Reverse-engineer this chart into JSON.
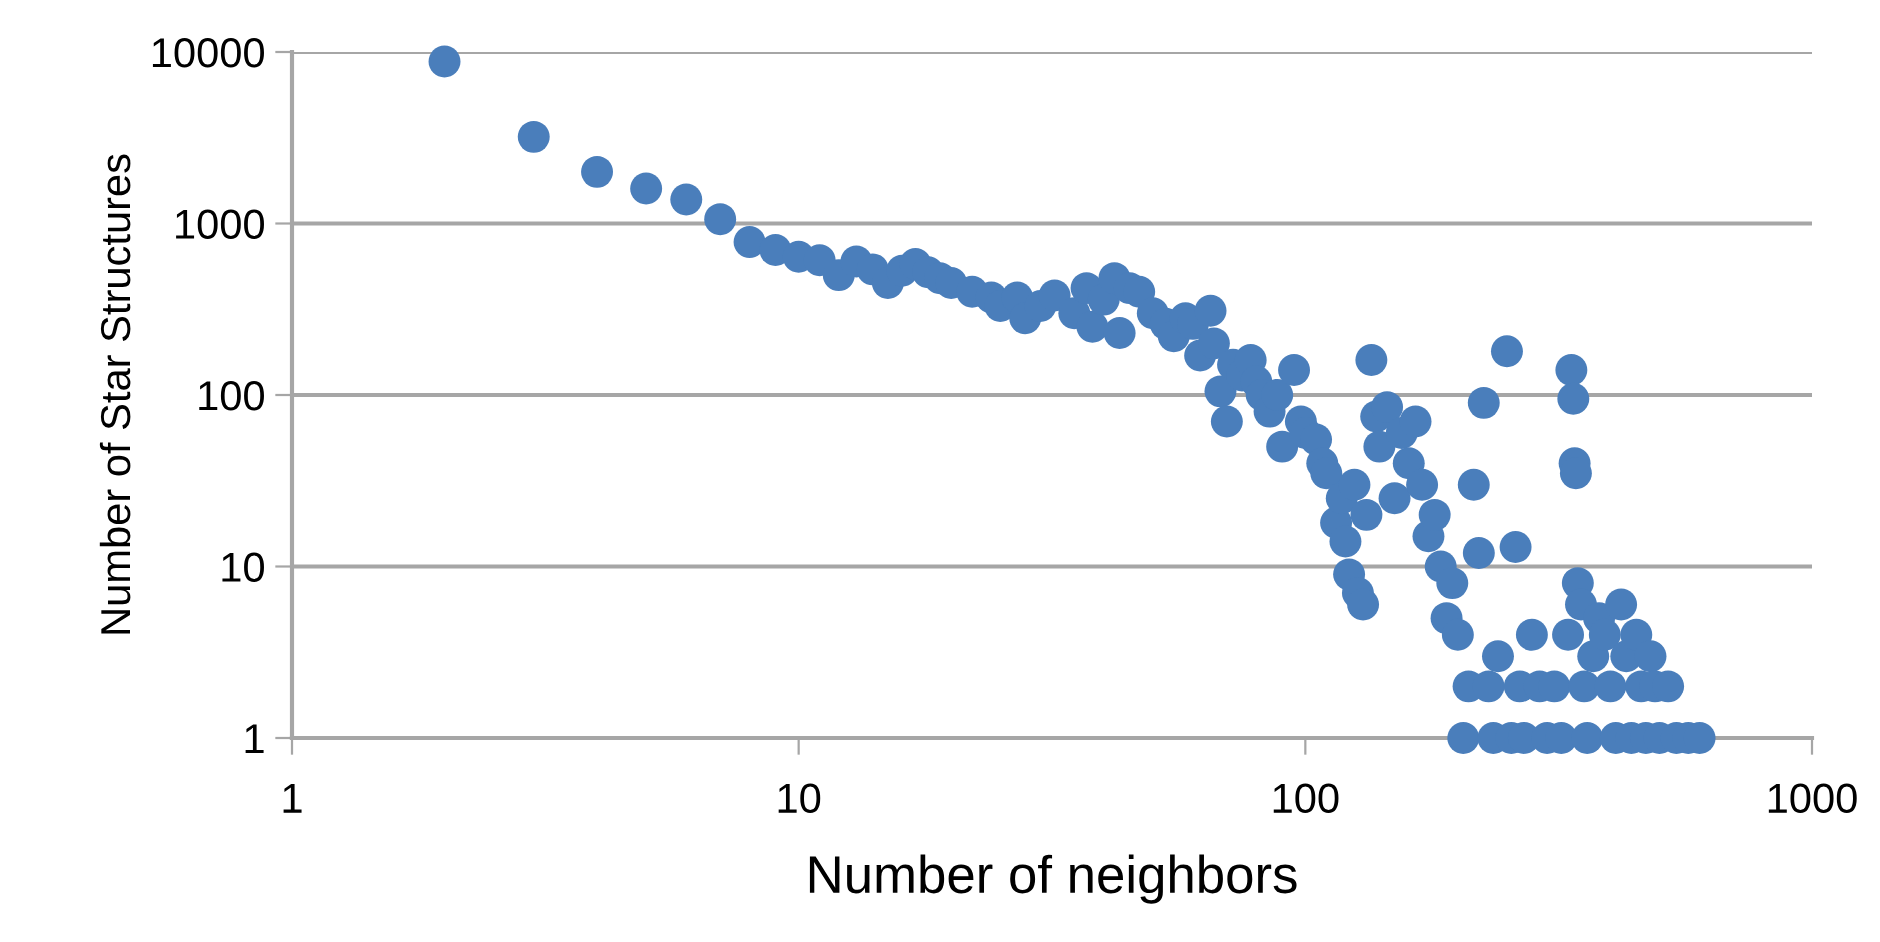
{
  "chart_data": {
    "type": "scatter",
    "xlabel": "Number of neighbors",
    "ylabel": "Number of Star Structures",
    "log": "xy",
    "xlim": [
      1,
      1000
    ],
    "ylim": [
      1,
      10000
    ],
    "xticks": [
      1,
      10,
      100,
      1000
    ],
    "yticks": [
      1,
      10,
      100,
      1000,
      10000
    ],
    "grid": "y",
    "marker": "circle",
    "series": [
      {
        "color": "#4a7ebb",
        "x": [
          2,
          3,
          4,
          5,
          6,
          7,
          8,
          9,
          10,
          11,
          12,
          13,
          14,
          15,
          16,
          17,
          18,
          19,
          20,
          22,
          24,
          25,
          27,
          28,
          30,
          32,
          35,
          37,
          38,
          40,
          42,
          43,
          45,
          47,
          50,
          53,
          55,
          58,
          60,
          62,
          65,
          66,
          68,
          70,
          72,
          75,
          78,
          80,
          82,
          85,
          88,
          90,
          95,
          98,
          100,
          105,
          108,
          110,
          115,
          118,
          120,
          122,
          125,
          127,
          130,
          132,
          135,
          138,
          140,
          145,
          150,
          155,
          160,
          165,
          170,
          175,
          180,
          185,
          190,
          195,
          200,
          205,
          210,
          215,
          220,
          225,
          230,
          235,
          240,
          250,
          255,
          260,
          265,
          270,
          280,
          290,
          300,
          310,
          320,
          330,
          335,
          338,
          340,
          342,
          345,
          350,
          355,
          360,
          370,
          380,
          390,
          400,
          410,
          420,
          430,
          440,
          450,
          460,
          470,
          480,
          490,
          500,
          520,
          540,
          570,
          600
        ],
        "values": [
          8800,
          3200,
          2000,
          1600,
          1380,
          1060,
          780,
          700,
          640,
          610,
          500,
          600,
          540,
          450,
          530,
          580,
          520,
          480,
          450,
          400,
          370,
          330,
          370,
          280,
          330,
          380,
          300,
          420,
          250,
          360,
          480,
          230,
          420,
          400,
          300,
          260,
          220,
          280,
          260,
          170,
          310,
          200,
          105,
          70,
          150,
          130,
          160,
          120,
          100,
          80,
          100,
          50,
          140,
          70,
          60,
          55,
          40,
          35,
          18,
          25,
          14,
          9,
          30,
          7,
          6,
          20,
          160,
          75,
          50,
          85,
          25,
          60,
          40,
          70,
          30,
          15,
          20,
          10,
          5,
          8,
          4,
          1,
          2,
          30,
          12,
          90,
          2,
          1,
          3,
          180,
          1,
          13,
          2,
          1,
          4,
          2,
          1,
          2,
          1,
          4,
          140,
          95,
          40,
          35,
          8,
          6,
          2,
          1,
          3,
          5,
          4,
          2,
          1,
          6,
          3,
          1,
          4,
          2,
          1,
          3,
          2,
          1,
          2,
          1,
          1,
          1
        ]
      }
    ]
  }
}
